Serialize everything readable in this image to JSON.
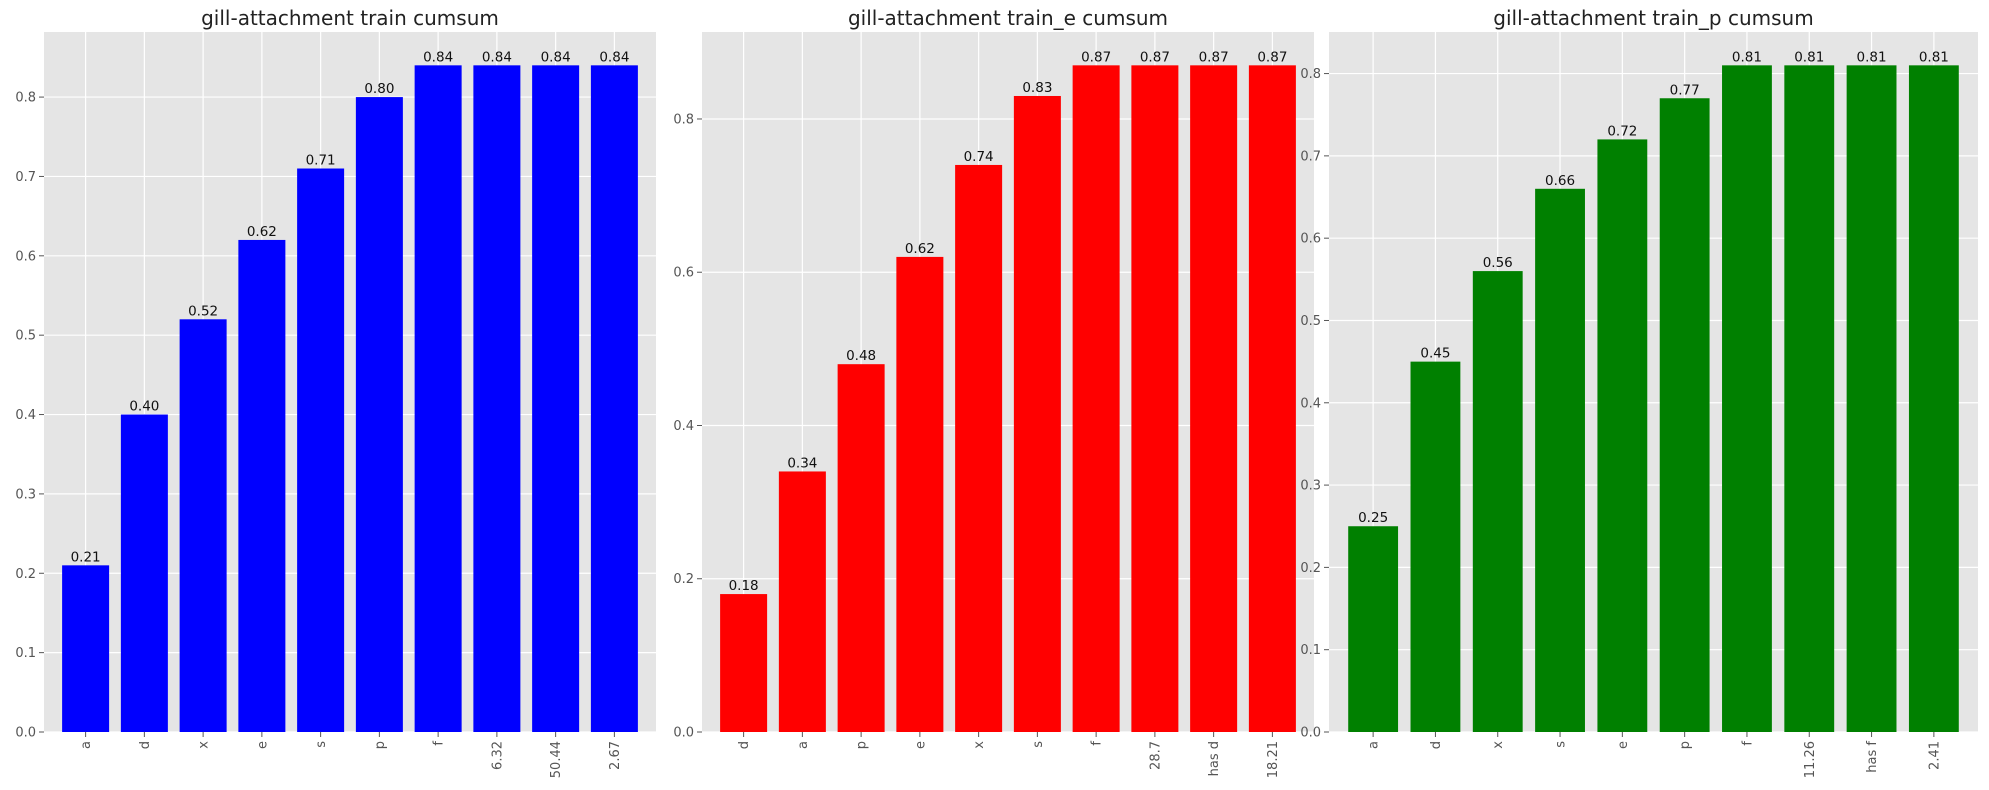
{
  "chart_data": [
    {
      "type": "bar",
      "title": "gill-attachment train cumsum",
      "categories": [
        "a",
        "d",
        "x",
        "e",
        "s",
        "p",
        "f",
        "6.32",
        "50.44",
        "2.67"
      ],
      "values": [
        0.21,
        0.4,
        0.52,
        0.62,
        0.71,
        0.8,
        0.84,
        0.84,
        0.84,
        0.84
      ],
      "value_labels": [
        "0.21",
        "0.40",
        "0.52",
        "0.62",
        "0.71",
        "0.80",
        "0.84",
        "0.84",
        "0.84",
        "0.84"
      ],
      "color": "#0000ff",
      "ylim": [
        0,
        0.882
      ],
      "yticks": [
        0.0,
        0.1,
        0.2,
        0.3,
        0.4,
        0.5,
        0.6,
        0.7,
        0.8
      ],
      "ytick_labels": [
        "0.0",
        "0.1",
        "0.2",
        "0.3",
        "0.4",
        "0.5",
        "0.6",
        "0.7",
        "0.8"
      ],
      "grid": true
    },
    {
      "type": "bar",
      "title": "gill-attachment train_e cumsum",
      "categories": [
        "d",
        "a",
        "p",
        "e",
        "x",
        "s",
        "f",
        "28.7",
        "has d",
        "18.21"
      ],
      "values": [
        0.18,
        0.34,
        0.48,
        0.62,
        0.74,
        0.83,
        0.87,
        0.87,
        0.87,
        0.87
      ],
      "value_labels": [
        "0.18",
        "0.34",
        "0.48",
        "0.62",
        "0.74",
        "0.83",
        "0.87",
        "0.87",
        "0.87",
        "0.87"
      ],
      "color": "#ff0000",
      "ylim": [
        0,
        0.9135
      ],
      "yticks": [
        0.0,
        0.2,
        0.4,
        0.6,
        0.8
      ],
      "ytick_labels": [
        "0.0",
        "0.2",
        "0.4",
        "0.6",
        "0.8"
      ],
      "grid": true
    },
    {
      "type": "bar",
      "title": "gill-attachment train_p cumsum",
      "categories": [
        "a",
        "d",
        "x",
        "s",
        "e",
        "p",
        "f",
        "11.26",
        "has f",
        "2.41"
      ],
      "values": [
        0.25,
        0.45,
        0.56,
        0.66,
        0.72,
        0.77,
        0.81,
        0.81,
        0.81,
        0.81
      ],
      "value_labels": [
        "0.25",
        "0.45",
        "0.56",
        "0.66",
        "0.72",
        "0.77",
        "0.81",
        "0.81",
        "0.81",
        "0.81"
      ],
      "color": "#008000",
      "ylim": [
        0,
        0.8505
      ],
      "yticks": [
        0.0,
        0.1,
        0.2,
        0.3,
        0.4,
        0.5,
        0.6,
        0.7,
        0.8
      ],
      "ytick_labels": [
        "0.0",
        "0.1",
        "0.2",
        "0.3",
        "0.4",
        "0.5",
        "0.6",
        "0.7",
        "0.8"
      ],
      "grid": true
    }
  ]
}
